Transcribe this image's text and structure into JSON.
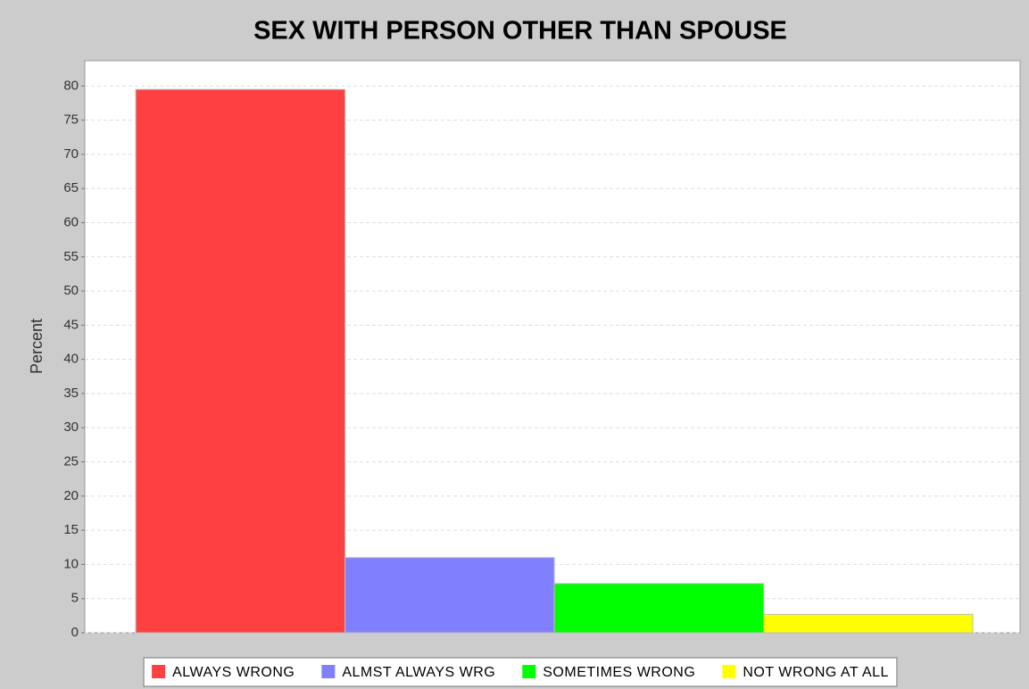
{
  "chart_data": {
    "type": "bar",
    "title": "SEX WITH PERSON OTHER THAN SPOUSE",
    "y_label": "Percent",
    "categories": [
      null
    ],
    "series": [
      {
        "name": "ALWAYS WRONG",
        "color": "#ff4040",
        "values": [
          79.5
        ]
      },
      {
        "name": "ALMST ALWAYS WRG",
        "color": "#8080ff",
        "values": [
          11.0
        ]
      },
      {
        "name": "SOMETIMES WRONG",
        "color": "#00ff00",
        "values": [
          7.2
        ]
      },
      {
        "name": "NOT WRONG AT ALL",
        "color": "#ffff00",
        "values": [
          2.7
        ]
      }
    ],
    "ylim": [
      0,
      83.7
    ],
    "yticks": [
      0,
      5,
      10,
      15,
      20,
      25,
      30,
      35,
      40,
      45,
      50,
      55,
      60,
      65,
      70,
      75,
      80
    ],
    "grid": true,
    "legend": "bottom"
  }
}
